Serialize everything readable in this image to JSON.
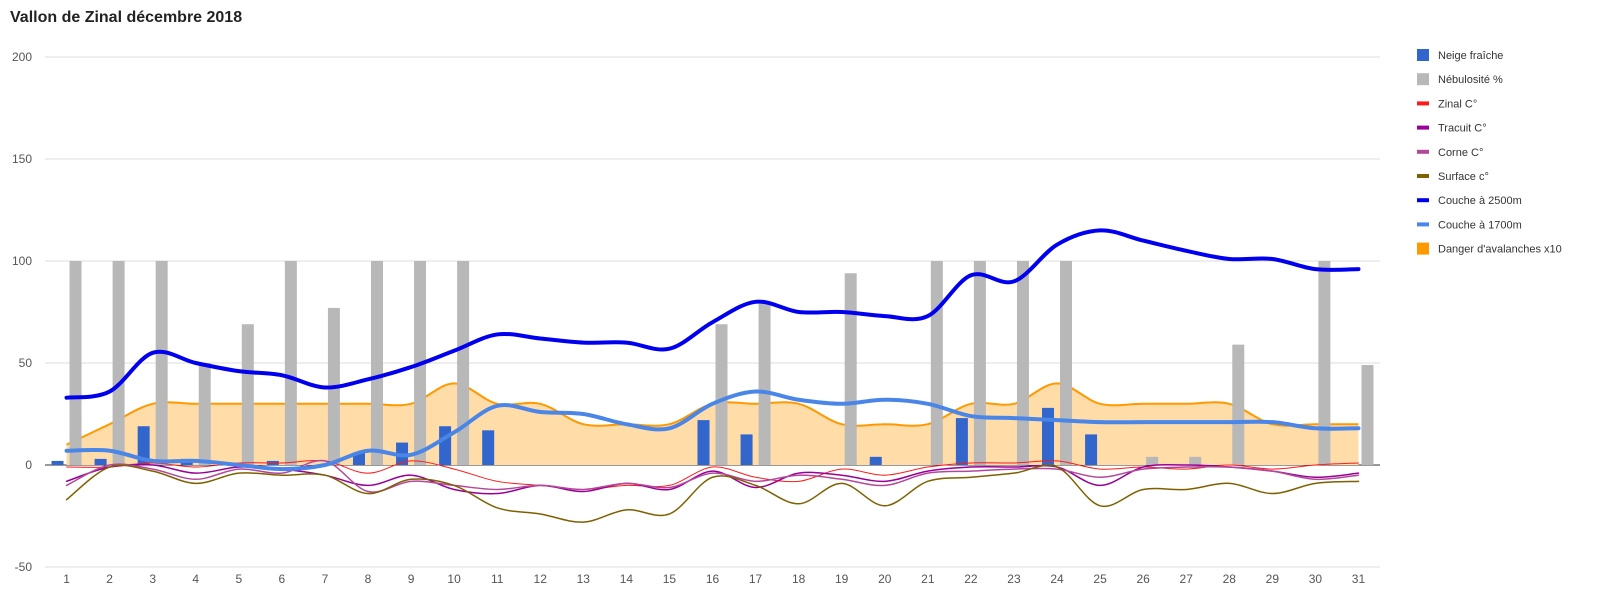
{
  "chart_data": {
    "type": "combo",
    "title": "Vallon de Zinal décembre 2018",
    "ylim": [
      -50,
      200
    ],
    "yticks": [
      200,
      150,
      100,
      50,
      0,
      -50
    ],
    "categories": [
      "1",
      "2",
      "3",
      "4",
      "5",
      "6",
      "7",
      "8",
      "9",
      "10",
      "11",
      "12",
      "13",
      "14",
      "15",
      "16",
      "17",
      "18",
      "19",
      "20",
      "21",
      "22",
      "23",
      "24",
      "25",
      "26",
      "27",
      "28",
      "29",
      "30",
      "31"
    ],
    "legend_position": "right",
    "grid": true,
    "series": [
      {
        "name": "Neige fraîche",
        "type": "bar",
        "color": "#3366cc",
        "values": [
          2,
          3,
          19,
          3,
          0,
          2,
          0,
          6,
          11,
          19,
          17,
          0,
          0,
          0,
          0,
          22,
          15,
          0,
          0,
          4,
          0,
          23,
          0,
          28,
          15,
          0,
          0,
          0,
          0,
          0,
          0
        ]
      },
      {
        "name": "Nébulosité %",
        "type": "bar",
        "color": "#b8b8b8",
        "values": [
          100,
          100,
          100,
          50,
          69,
          100,
          77,
          100,
          100,
          100,
          0,
          0,
          0,
          0,
          0,
          69,
          79,
          0,
          94,
          0,
          100,
          100,
          100,
          100,
          0,
          4,
          4,
          59,
          0,
          100,
          49
        ]
      },
      {
        "name": "Zinal C°",
        "type": "line",
        "color": "#ff1a1a",
        "width": 1,
        "values": [
          -1,
          -1,
          1,
          -1,
          1,
          1,
          2,
          -4,
          2,
          -2,
          -8,
          -10,
          -12,
          -10,
          -10,
          -1,
          -6,
          -8,
          -2,
          -5,
          -1,
          1,
          1,
          2,
          -2,
          -1,
          -2,
          0,
          -2,
          0,
          1
        ]
      },
      {
        "name": "Tracuit C°",
        "type": "line",
        "color": "#990099",
        "width": 1.5,
        "values": [
          -8,
          -1,
          0,
          -4,
          -1,
          -2,
          -5,
          -10,
          -5,
          -12,
          -14,
          -10,
          -13,
          -9,
          -12,
          -3,
          -11,
          -4,
          -5,
          -8,
          -3,
          -1,
          -1,
          -1,
          -10,
          -1,
          0,
          -1,
          -3,
          -6,
          -4
        ]
      },
      {
        "name": "Corne C°",
        "type": "line",
        "color": "#b3489a",
        "width": 1.5,
        "values": [
          -10,
          0,
          -2,
          -7,
          -2,
          -4,
          2,
          -13,
          -8,
          -10,
          -12,
          -10,
          -12,
          -9,
          -11,
          -4,
          -8,
          -5,
          -7,
          -10,
          -4,
          -3,
          -2,
          -2,
          -6,
          -2,
          -1,
          -1,
          -3,
          -7,
          -5
        ]
      },
      {
        "name": "Surface c°",
        "type": "line",
        "color": "#7f6000",
        "width": 1.5,
        "values": [
          -17,
          -1,
          -3,
          -9,
          -4,
          -5,
          -5,
          -14,
          -7,
          -10,
          -21,
          -24,
          -28,
          -22,
          -24,
          -6,
          -10,
          -19,
          -9,
          -20,
          -8,
          -6,
          -4,
          -1,
          -20,
          -12,
          -12,
          -9,
          -14,
          -9,
          -8
        ]
      },
      {
        "name": "Couche à 2500m",
        "type": "line",
        "color": "#0000ee",
        "width": 4,
        "values": [
          33,
          36,
          55,
          50,
          46,
          44,
          38,
          42,
          48,
          56,
          64,
          62,
          60,
          60,
          57,
          70,
          80,
          75,
          75,
          73,
          73,
          93,
          90,
          108,
          115,
          110,
          105,
          101,
          101,
          96,
          96
        ]
      },
      {
        "name": "Couche à 1700m",
        "type": "line",
        "color": "#4a86e8",
        "width": 4,
        "values": [
          7,
          7,
          2,
          2,
          0,
          -2,
          0,
          7,
          5,
          16,
          29,
          26,
          25,
          20,
          18,
          30,
          36,
          32,
          30,
          32,
          30,
          24,
          23,
          22,
          21,
          21,
          21,
          21,
          21,
          18,
          18
        ]
      },
      {
        "name": "Danger d'avalanches x10",
        "type": "area",
        "color": "#ff9900",
        "fill": "#ffdca8",
        "values": [
          10,
          20,
          30,
          30,
          30,
          30,
          30,
          30,
          30,
          40,
          30,
          30,
          20,
          20,
          20,
          30,
          30,
          30,
          20,
          20,
          20,
          30,
          30,
          40,
          30,
          30,
          30,
          30,
          20,
          20,
          20
        ]
      }
    ]
  }
}
